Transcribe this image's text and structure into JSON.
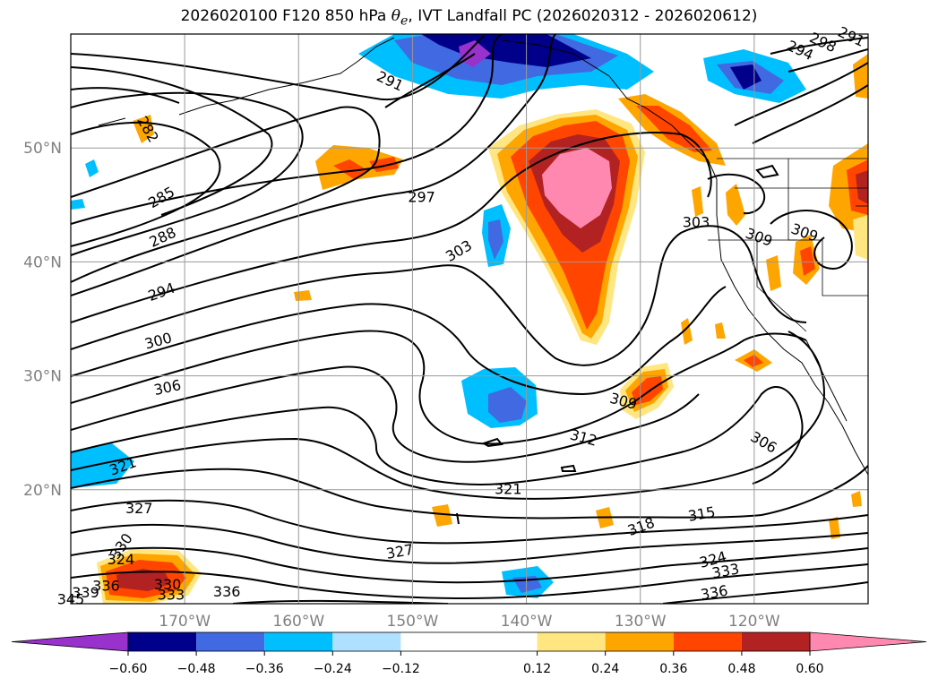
{
  "title": {
    "prefix": "2026020100 F120 850 hPa ",
    "theta_symbol": "θ",
    "theta_subscript": "e",
    "suffix": ", IVT Landfall PC (2026020312 - 2026020612)"
  },
  "chart_data": {
    "type": "filled contour map",
    "lon_range": [
      -180,
      -110
    ],
    "lat_range": [
      10,
      60
    ],
    "grid": true,
    "lat_ticks": [
      {
        "lat": 20,
        "label": "20°N"
      },
      {
        "lat": 30,
        "label": "30°N"
      },
      {
        "lat": 40,
        "label": "40°N"
      },
      {
        "lat": 50,
        "label": "50°N"
      }
    ],
    "lon_ticks": [
      {
        "lon": -170,
        "label": "170°W"
      },
      {
        "lon": -160,
        "label": "160°W"
      },
      {
        "lon": -150,
        "label": "150°W"
      },
      {
        "lon": -140,
        "label": "140°W"
      },
      {
        "lon": -130,
        "label": "130°W"
      },
      {
        "lon": -120,
        "label": "120°W"
      }
    ],
    "colorbar": {
      "extend": "both",
      "min": -0.72,
      "max": 0.72,
      "boundaries": [
        -0.72,
        -0.6,
        -0.48,
        -0.36,
        -0.24,
        -0.12,
        0.12,
        0.24,
        0.36,
        0.48,
        0.6,
        0.72
      ],
      "colors": [
        "#9932cc",
        "#00008b",
        "#4169e1",
        "#00bfff",
        "#b0e0ff",
        "#ffffff",
        "#ffe680",
        "#ffa500",
        "#ff4500",
        "#b22222",
        "#ff88b0"
      ],
      "ticks": [
        {
          "value": -0.6,
          "label": "−0.60"
        },
        {
          "value": -0.48,
          "label": "−0.48"
        },
        {
          "value": -0.36,
          "label": "−0.36"
        },
        {
          "value": -0.24,
          "label": "−0.24"
        },
        {
          "value": -0.12,
          "label": "−0.12"
        },
        {
          "value": 0.12,
          "label": "0.12"
        },
        {
          "value": 0.24,
          "label": "0.24"
        },
        {
          "value": 0.36,
          "label": "0.36"
        },
        {
          "value": 0.48,
          "label": "0.48"
        },
        {
          "value": 0.6,
          "label": "0.60"
        }
      ]
    },
    "contour_labels": [
      {
        "text": "291",
        "lon": -152.0,
        "lat": 55.8,
        "rot": 25
      },
      {
        "text": "282",
        "lon": -173.3,
        "lat": 51.6,
        "rot": 60
      },
      {
        "text": "285",
        "lon": -172.0,
        "lat": 45.6,
        "rot": -30
      },
      {
        "text": "288",
        "lon": -171.9,
        "lat": 42.1,
        "rot": -25
      },
      {
        "text": "294",
        "lon": -172.0,
        "lat": 37.3,
        "rot": -20
      },
      {
        "text": "297",
        "lon": -149.2,
        "lat": 45.6,
        "rot": 0
      },
      {
        "text": "303",
        "lon": -145.9,
        "lat": 40.9,
        "rot": -30
      },
      {
        "text": "300",
        "lon": -172.3,
        "lat": 33.0,
        "rot": -15
      },
      {
        "text": "306",
        "lon": -171.5,
        "lat": 28.9,
        "rot": -12
      },
      {
        "text": "321",
        "lon": -175.4,
        "lat": 22.0,
        "rot": -20
      },
      {
        "text": "327",
        "lon": -174.0,
        "lat": 18.3,
        "rot": 0
      },
      {
        "text": "330",
        "lon": -175.5,
        "lat": 15.0,
        "rot": -55
      },
      {
        "text": "324",
        "lon": -175.6,
        "lat": 13.8,
        "rot": 0
      },
      {
        "text": "336",
        "lon": -176.9,
        "lat": 11.5,
        "rot": 0
      },
      {
        "text": "339",
        "lon": -178.7,
        "lat": 10.9,
        "rot": 0
      },
      {
        "text": "345",
        "lon": -180.0,
        "lat": 10.3,
        "rot": 0
      },
      {
        "text": "330",
        "lon": -171.5,
        "lat": 11.6,
        "rot": 0
      },
      {
        "text": "333",
        "lon": -171.2,
        "lat": 10.7,
        "rot": 0
      },
      {
        "text": "336",
        "lon": -166.3,
        "lat": 11.0,
        "rot": 0
      },
      {
        "text": "321",
        "lon": -141.6,
        "lat": 20.0,
        "rot": 0
      },
      {
        "text": "327",
        "lon": -151.1,
        "lat": 14.5,
        "rot": -10
      },
      {
        "text": "312",
        "lon": -135.0,
        "lat": 24.5,
        "rot": 15
      },
      {
        "text": "309",
        "lon": -131.5,
        "lat": 27.7,
        "rot": 15
      },
      {
        "text": "318",
        "lon": -129.9,
        "lat": 16.7,
        "rot": -20
      },
      {
        "text": "315",
        "lon": -124.6,
        "lat": 17.8,
        "rot": -10
      },
      {
        "text": "306",
        "lon": -119.2,
        "lat": 24.1,
        "rot": 30
      },
      {
        "text": "324",
        "lon": -123.6,
        "lat": 13.8,
        "rot": -15
      },
      {
        "text": "333",
        "lon": -122.5,
        "lat": 12.8,
        "rot": -10
      },
      {
        "text": "336",
        "lon": -123.5,
        "lat": 10.9,
        "rot": -10
      },
      {
        "text": "303",
        "lon": -125.1,
        "lat": 43.4,
        "rot": 0
      },
      {
        "text": "309",
        "lon": -119.6,
        "lat": 42.1,
        "rot": 20
      },
      {
        "text": "309",
        "lon": -115.6,
        "lat": 42.5,
        "rot": 20
      },
      {
        "text": "294",
        "lon": -116.0,
        "lat": 58.5,
        "rot": 25
      },
      {
        "text": "298",
        "lon": -114.0,
        "lat": 59.2,
        "rot": 25
      },
      {
        "text": "291",
        "lon": -111.5,
        "lat": 59.7,
        "rot": 25
      }
    ]
  }
}
